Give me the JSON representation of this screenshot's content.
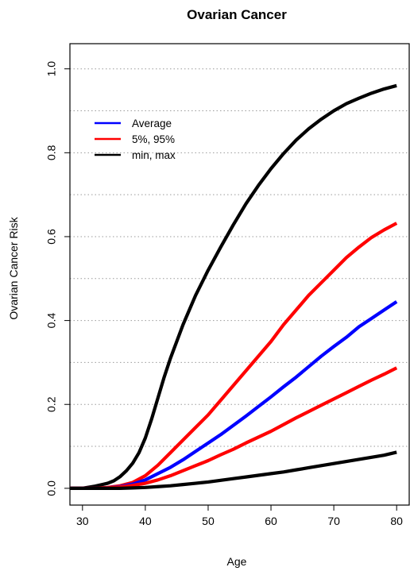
{
  "chart_data": {
    "type": "line",
    "title": "Ovarian Cancer",
    "xlabel": "Age",
    "ylabel": "Ovarian Cancer Risk",
    "xlim": [
      28,
      82
    ],
    "ylim": [
      -0.04,
      1.06
    ],
    "x_ticks": [
      "30",
      "40",
      "50",
      "60",
      "70",
      "80"
    ],
    "y_ticks": [
      "0.0",
      "0.2",
      "0.4",
      "0.6",
      "0.8",
      "1.0"
    ],
    "gridlines_y": [
      0.1,
      0.2,
      0.3,
      0.4,
      0.5,
      0.6,
      0.7,
      0.8,
      0.9,
      1.0
    ],
    "legend": {
      "position": "top-left",
      "entries": [
        {
          "label": "Average",
          "color": "#0000ff"
        },
        {
          "label": "5%, 95%",
          "color": "#ff0000"
        },
        {
          "label": "min, max",
          "color": "#000000"
        }
      ]
    },
    "series": [
      {
        "legend": "min, max",
        "color": "#000000",
        "x": [
          28,
          30,
          32,
          34,
          35,
          36,
          37,
          38,
          39,
          40,
          41,
          42,
          43,
          44,
          45,
          46,
          48,
          50,
          52,
          54,
          56,
          58,
          60,
          62,
          64,
          66,
          68,
          70,
          72,
          74,
          76,
          78,
          80
        ],
        "y": [
          0.0,
          0.0,
          0.005,
          0.012,
          0.018,
          0.028,
          0.042,
          0.06,
          0.085,
          0.12,
          0.165,
          0.215,
          0.265,
          0.31,
          0.35,
          0.39,
          0.46,
          0.52,
          0.575,
          0.628,
          0.678,
          0.722,
          0.762,
          0.798,
          0.83,
          0.857,
          0.88,
          0.9,
          0.917,
          0.93,
          0.942,
          0.952,
          0.96
        ]
      },
      {
        "legend": "5%, 95%",
        "color": "#ff0000",
        "x": [
          28,
          30,
          32,
          34,
          36,
          38,
          40,
          42,
          44,
          46,
          48,
          50,
          52,
          54,
          56,
          58,
          60,
          62,
          64,
          66,
          68,
          70,
          72,
          74,
          76,
          78,
          80
        ],
        "y": [
          0.0,
          0.0,
          0.0,
          0.002,
          0.006,
          0.014,
          0.03,
          0.055,
          0.085,
          0.115,
          0.145,
          0.175,
          0.21,
          0.245,
          0.28,
          0.315,
          0.35,
          0.39,
          0.425,
          0.46,
          0.49,
          0.52,
          0.55,
          0.575,
          0.598,
          0.616,
          0.632
        ]
      },
      {
        "legend": "Average",
        "color": "#0000ff",
        "x": [
          28,
          30,
          32,
          34,
          36,
          38,
          40,
          42,
          44,
          46,
          48,
          50,
          52,
          54,
          56,
          58,
          60,
          62,
          64,
          66,
          68,
          70,
          72,
          74,
          76,
          78,
          80
        ],
        "y": [
          0.0,
          0.0,
          0.0,
          0.001,
          0.004,
          0.01,
          0.02,
          0.035,
          0.05,
          0.068,
          0.088,
          0.108,
          0.128,
          0.15,
          0.172,
          0.195,
          0.218,
          0.242,
          0.265,
          0.29,
          0.315,
          0.338,
          0.36,
          0.385,
          0.405,
          0.425,
          0.445
        ]
      },
      {
        "legend": "5%, 95%",
        "color": "#ff0000",
        "x": [
          28,
          30,
          32,
          34,
          36,
          38,
          40,
          42,
          44,
          46,
          48,
          50,
          52,
          54,
          56,
          58,
          60,
          62,
          64,
          66,
          68,
          70,
          72,
          74,
          76,
          78,
          80
        ],
        "y": [
          0.0,
          0.0,
          0.0,
          0.001,
          0.003,
          0.007,
          0.012,
          0.02,
          0.03,
          0.042,
          0.054,
          0.066,
          0.08,
          0.093,
          0.108,
          0.122,
          0.136,
          0.152,
          0.168,
          0.183,
          0.198,
          0.213,
          0.228,
          0.243,
          0.258,
          0.272,
          0.287
        ]
      },
      {
        "legend": "min, max",
        "color": "#000000",
        "x": [
          28,
          30,
          32,
          34,
          36,
          38,
          40,
          42,
          44,
          46,
          48,
          50,
          52,
          54,
          56,
          58,
          60,
          62,
          64,
          66,
          68,
          70,
          72,
          74,
          76,
          78,
          80
        ],
        "y": [
          0.0,
          0.0,
          0.0,
          0.0,
          0.0,
          0.001,
          0.002,
          0.004,
          0.006,
          0.009,
          0.012,
          0.015,
          0.019,
          0.023,
          0.027,
          0.031,
          0.035,
          0.039,
          0.044,
          0.049,
          0.054,
          0.059,
          0.064,
          0.069,
          0.074,
          0.079,
          0.086
        ]
      }
    ]
  }
}
